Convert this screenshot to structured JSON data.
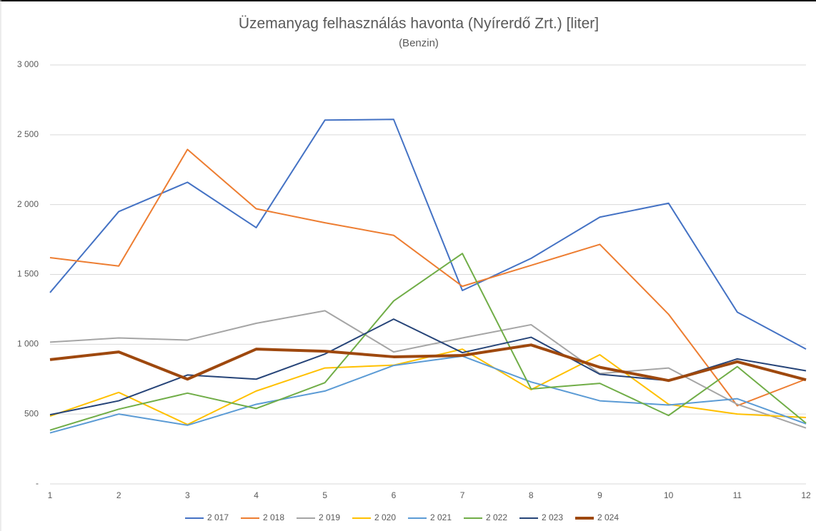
{
  "chart_data": {
    "type": "line",
    "title": "Üzemanyag felhasználás havonta (Nyírerdő Zrt.) [liter]",
    "subtitle": "(Benzin)",
    "x": [
      1,
      2,
      3,
      4,
      5,
      6,
      7,
      8,
      9,
      10,
      11,
      12
    ],
    "xlim": [
      1,
      12
    ],
    "xticks": [
      1,
      2,
      3,
      4,
      5,
      6,
      7,
      8,
      9,
      10,
      11,
      12
    ],
    "ylim": [
      0,
      3000
    ],
    "yticks": [
      {
        "value": 0,
        "label": "-"
      },
      500,
      {
        "value": 1000,
        "label": "1 000"
      },
      {
        "value": 1500,
        "label": "1 500"
      },
      {
        "value": 2000,
        "label": "2 000"
      },
      {
        "value": 2500,
        "label": "2 500"
      },
      {
        "value": 3000,
        "label": "3 000"
      }
    ],
    "grid": true,
    "legend": "bottom",
    "series": [
      {
        "name": "2 017",
        "color": "#4472c4",
        "values": [
          1370,
          1950,
          2160,
          1835,
          2605,
          2610,
          1385,
          1615,
          1910,
          2010,
          1230,
          965
        ]
      },
      {
        "name": "2 018",
        "color": "#ed7d31",
        "values": [
          1620,
          1560,
          2395,
          1970,
          1870,
          1780,
          1415,
          1565,
          1715,
          1215,
          560,
          750
        ]
      },
      {
        "name": "2 019",
        "color": "#a5a5a5",
        "values": [
          1015,
          1045,
          1030,
          1150,
          1240,
          945,
          1045,
          1140,
          790,
          830,
          570,
          400
        ]
      },
      {
        "name": "2 020",
        "color": "#ffc000",
        "values": [
          485,
          655,
          425,
          665,
          830,
          850,
          965,
          675,
          925,
          570,
          500,
          475
        ]
      },
      {
        "name": "2 021",
        "color": "#5b9bd5",
        "values": [
          365,
          500,
          420,
          570,
          665,
          848,
          915,
          730,
          595,
          565,
          610,
          430
        ]
      },
      {
        "name": "2 022",
        "color": "#70ad47",
        "values": [
          385,
          535,
          650,
          540,
          725,
          1310,
          1650,
          680,
          720,
          490,
          840,
          435
        ]
      },
      {
        "name": "2 023",
        "color": "#264478",
        "values": [
          495,
          595,
          780,
          750,
          930,
          1180,
          940,
          1050,
          785,
          740,
          895,
          810
        ]
      },
      {
        "name": "2 024",
        "color": "#9e480e",
        "line_width": 4,
        "values": [
          890,
          945,
          750,
          965,
          950,
          910,
          920,
          995,
          835,
          740,
          875,
          745
        ]
      }
    ]
  }
}
